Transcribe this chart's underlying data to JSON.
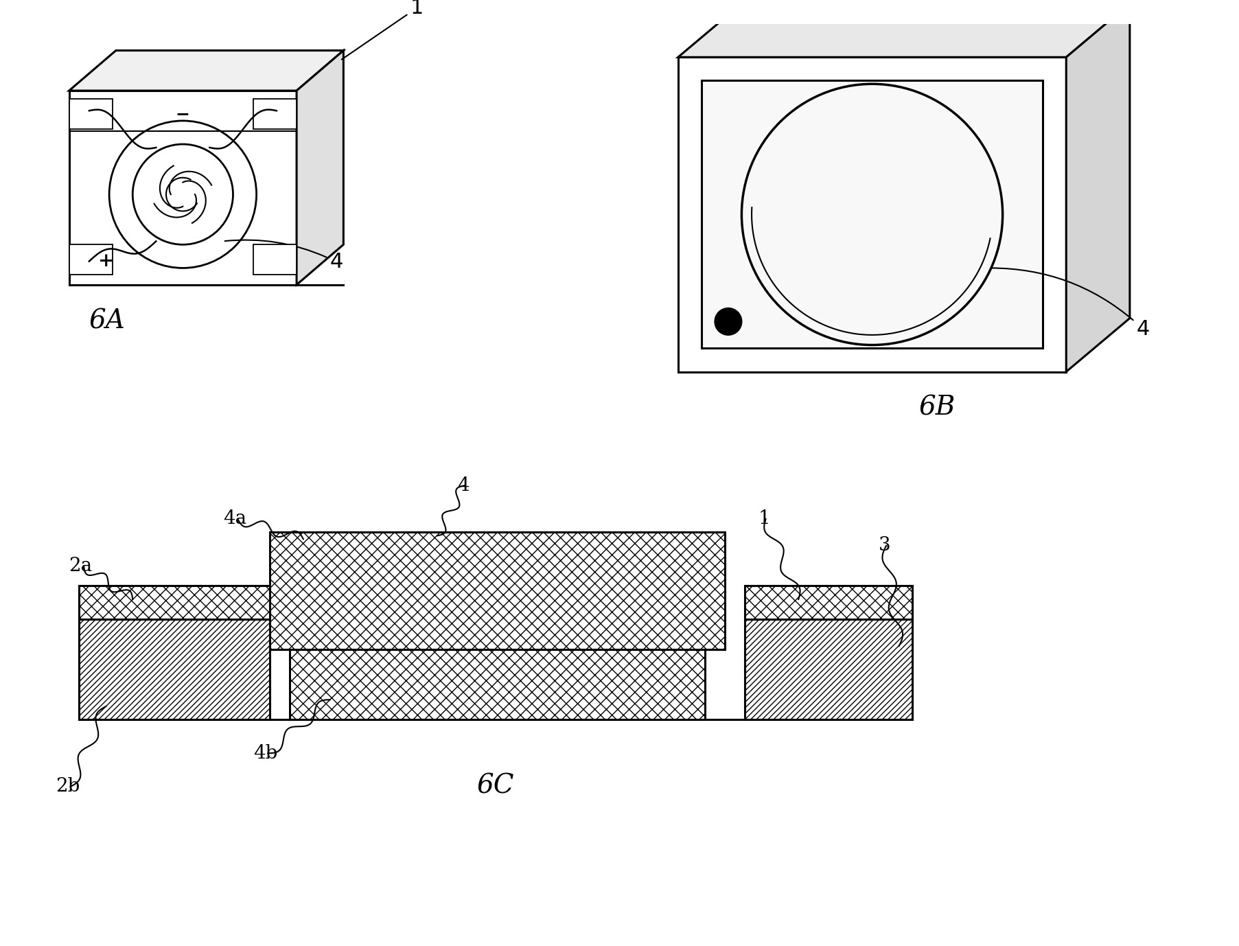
{
  "bg_color": "#ffffff",
  "line_color": "#000000",
  "fig_width": 18.05,
  "fig_height": 13.78,
  "labels": {
    "6A": "6A",
    "6B": "6B",
    "6C": "6C",
    "1a": "1",
    "1b": "1",
    "3": "3",
    "4a_lbl": "4a",
    "4b_lbl": "4b",
    "4_lbl": "4",
    "2a": "2a",
    "2b": "2b"
  }
}
